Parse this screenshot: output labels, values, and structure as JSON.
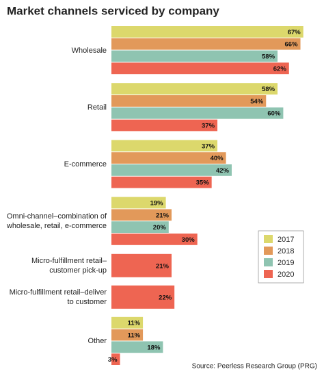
{
  "chart_data": {
    "type": "hbar",
    "title": "Market channels serviced by company",
    "categories": [
      "Wholesale",
      "Retail",
      "E-commerce",
      "Omni-channel–combination of wholesale, retail, e-commerce",
      "Micro-fulfillment retail–customer pick-up",
      "Micro-fulfillment retail–deliver to customer",
      "Other"
    ],
    "series": [
      {
        "name": "2017",
        "color": "#dcd86c",
        "values": [
          67,
          58,
          37,
          19,
          null,
          null,
          11
        ],
        "value_labels": [
          "67%",
          "58%",
          "37%",
          "19%",
          null,
          null,
          "11%"
        ]
      },
      {
        "name": "2018",
        "color": "#e2995a",
        "values": [
          66,
          54,
          40,
          21,
          null,
          null,
          11
        ],
        "value_labels": [
          "66%",
          "54%",
          "40%",
          "21%",
          null,
          null,
          "11%"
        ]
      },
      {
        "name": "2019",
        "color": "#8fc4b1",
        "values": [
          58,
          60,
          42,
          20,
          null,
          null,
          18
        ],
        "value_labels": [
          "58%",
          "60%",
          "42%",
          "20%",
          null,
          null,
          "18%"
        ]
      },
      {
        "name": "2020",
        "color": "#ee6552",
        "values": [
          62,
          37,
          35,
          30,
          21,
          22,
          3
        ],
        "value_labels": [
          "62%",
          "37%",
          "35%",
          "30%",
          "21%",
          "22%",
          "3%"
        ]
      }
    ],
    "source": "Source: Peerless Research Group (PRG)",
    "legend": "lower right"
  }
}
